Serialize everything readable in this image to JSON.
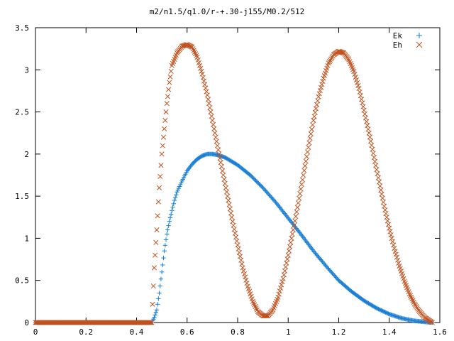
{
  "chart_data": {
    "type": "scatter",
    "title": "m2/n1.5/q1.0/r-+.30-j155/M0.2/512",
    "xlabel": "",
    "ylabel": "",
    "xlim": [
      0,
      1.6
    ],
    "ylim": [
      0,
      3.5
    ],
    "x_ticks": [
      0,
      0.2,
      0.4,
      0.6,
      0.8,
      1,
      1.2,
      1.4,
      1.6
    ],
    "x_tick_labels": [
      "0",
      "0.2",
      "0.4",
      "0.6",
      "0.8",
      "1",
      "1.2",
      "1.4",
      "1.6"
    ],
    "y_ticks": [
      0,
      0.5,
      1,
      1.5,
      2,
      2.5,
      3,
      3.5
    ],
    "y_tick_labels": [
      "0",
      "0.5",
      "1",
      "1.5",
      "2",
      "2.5",
      "3",
      "3.5"
    ],
    "grid": false,
    "legend_position": "top-right",
    "series": [
      {
        "name": "Ek",
        "marker": "plus",
        "color": "#1a7fd4",
        "points": [
          [
            0.0,
            0.0
          ],
          [
            0.46,
            0.0
          ],
          [
            0.47,
            0.06
          ],
          [
            0.48,
            0.15
          ],
          [
            0.49,
            0.35
          ],
          [
            0.5,
            0.6
          ],
          [
            0.51,
            0.85
          ],
          [
            0.52,
            1.05
          ],
          [
            0.53,
            1.2
          ],
          [
            0.54,
            1.33
          ],
          [
            0.55,
            1.45
          ],
          [
            0.56,
            1.55
          ],
          [
            0.58,
            1.68
          ],
          [
            0.6,
            1.8
          ],
          [
            0.62,
            1.88
          ],
          [
            0.64,
            1.94
          ],
          [
            0.66,
            1.98
          ],
          [
            0.68,
            2.0
          ],
          [
            0.7,
            2.0
          ],
          [
            0.72,
            1.99
          ],
          [
            0.75,
            1.96
          ],
          [
            0.8,
            1.87
          ],
          [
            0.85,
            1.75
          ],
          [
            0.9,
            1.6
          ],
          [
            0.95,
            1.43
          ],
          [
            1.0,
            1.24
          ],
          [
            1.05,
            1.05
          ],
          [
            1.1,
            0.85
          ],
          [
            1.15,
            0.67
          ],
          [
            1.2,
            0.5
          ],
          [
            1.25,
            0.37
          ],
          [
            1.3,
            0.26
          ],
          [
            1.35,
            0.17
          ],
          [
            1.4,
            0.1
          ],
          [
            1.45,
            0.05
          ],
          [
            1.5,
            0.02
          ],
          [
            1.55,
            0.005
          ],
          [
            1.57,
            0.0
          ]
        ]
      },
      {
        "name": "Eh",
        "marker": "cross",
        "color": "#c0521f",
        "points": [
          [
            0.0,
            0.0
          ],
          [
            0.46,
            0.0
          ],
          [
            0.47,
            0.65
          ],
          [
            0.48,
            1.1
          ],
          [
            0.49,
            1.6
          ],
          [
            0.5,
            2.0
          ],
          [
            0.51,
            2.3
          ],
          [
            0.52,
            2.6
          ],
          [
            0.53,
            2.85
          ],
          [
            0.54,
            3.05
          ],
          [
            0.56,
            3.2
          ],
          [
            0.58,
            3.28
          ],
          [
            0.6,
            3.3
          ],
          [
            0.62,
            3.27
          ],
          [
            0.64,
            3.15
          ],
          [
            0.66,
            2.95
          ],
          [
            0.68,
            2.7
          ],
          [
            0.7,
            2.4
          ],
          [
            0.72,
            2.1
          ],
          [
            0.74,
            1.8
          ],
          [
            0.76,
            1.5
          ],
          [
            0.78,
            1.2
          ],
          [
            0.8,
            0.92
          ],
          [
            0.82,
            0.65
          ],
          [
            0.84,
            0.43
          ],
          [
            0.86,
            0.25
          ],
          [
            0.88,
            0.13
          ],
          [
            0.9,
            0.08
          ],
          [
            0.92,
            0.08
          ],
          [
            0.94,
            0.15
          ],
          [
            0.96,
            0.3
          ],
          [
            0.98,
            0.52
          ],
          [
            1.0,
            0.8
          ],
          [
            1.02,
            1.1
          ],
          [
            1.04,
            1.42
          ],
          [
            1.06,
            1.75
          ],
          [
            1.08,
            2.08
          ],
          [
            1.1,
            2.4
          ],
          [
            1.12,
            2.68
          ],
          [
            1.14,
            2.9
          ],
          [
            1.16,
            3.08
          ],
          [
            1.18,
            3.18
          ],
          [
            1.2,
            3.22
          ],
          [
            1.22,
            3.2
          ],
          [
            1.24,
            3.12
          ],
          [
            1.26,
            2.98
          ],
          [
            1.28,
            2.78
          ],
          [
            1.3,
            2.52
          ],
          [
            1.32,
            2.25
          ],
          [
            1.34,
            1.96
          ],
          [
            1.36,
            1.67
          ],
          [
            1.38,
            1.38
          ],
          [
            1.4,
            1.12
          ],
          [
            1.42,
            0.88
          ],
          [
            1.44,
            0.67
          ],
          [
            1.46,
            0.49
          ],
          [
            1.48,
            0.34
          ],
          [
            1.5,
            0.22
          ],
          [
            1.52,
            0.13
          ],
          [
            1.54,
            0.06
          ],
          [
            1.56,
            0.02
          ],
          [
            1.57,
            0.0
          ]
        ]
      }
    ]
  }
}
